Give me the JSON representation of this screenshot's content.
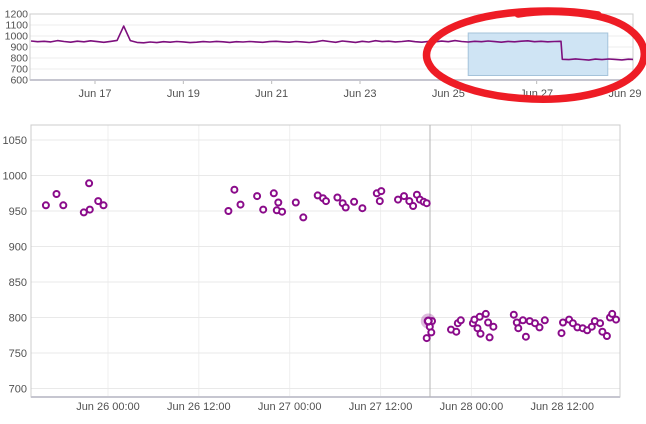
{
  "page": {
    "background": "#ffffff"
  },
  "chart_data": [
    {
      "id": "overview-line",
      "type": "line",
      "title": "",
      "xlabel": "",
      "ylabel": "",
      "legend": "none",
      "x_axis": {
        "tick_labels": [
          "Jun 17",
          "Jun 19",
          "Jun 21",
          "Jun 23",
          "Jun 25",
          "Jun 27",
          "Jun 29"
        ],
        "tick_days": [
          0,
          2,
          4,
          6,
          8,
          10,
          12
        ],
        "range_days": [
          -1.47,
          12.17
        ],
        "grid": false
      },
      "y_axis": {
        "ticks": [
          1200,
          1100,
          1000,
          900,
          800,
          700,
          600
        ],
        "range": [
          600,
          1200
        ],
        "grid": true
      },
      "series": [
        {
          "name": "metric",
          "color": "#7d0f7d",
          "x_step": 0.15,
          "segments": [
            {
              "x_start": -1.45,
              "values": [
                955,
                948,
                952,
                946,
                958,
                950,
                944,
                953,
                947,
                956,
                949,
                943,
                951,
                960,
                1090,
                958,
                942,
                938,
                945,
                940,
                948,
                944,
                950,
                946,
                940,
                944,
                949,
                945,
                951,
                947,
                942,
                948,
                945,
                950,
                946,
                943,
                949,
                952,
                947,
                944,
                950,
                946,
                941,
                947,
                958,
                950,
                943,
                955,
                948,
                942,
                952,
                945,
                957,
                949,
                953,
                946,
                950,
                956,
                948,
                944,
                951,
                947,
                954,
                948,
                958,
                950,
                945,
                952,
                948,
                955,
                949,
                944,
                951,
                947,
                953,
                956,
                948,
                952,
                947,
                950,
                952
              ]
            },
            {
              "x_start": 10.58,
              "values": [
                788,
                785,
                792,
                786,
                781,
                790,
                785,
                791,
                787,
                783,
                789,
                786
              ]
            }
          ]
        }
      ],
      "selection": {
        "from_day": 8.45,
        "to_day": 11.61,
        "value_top": 1027,
        "value_bottom": 645,
        "fill": "#cfe4f4",
        "border": "#a5c3da"
      },
      "annotation": {
        "kind": "hand-drawn-circle",
        "color": "#ee1c25"
      }
    },
    {
      "id": "detail-scatter",
      "type": "scatter",
      "title": "",
      "xlabel": "",
      "ylabel": "",
      "legend": "none",
      "x_axis": {
        "tick_labels": [
          "Jun 26 00:00",
          "Jun 26 12:00",
          "Jun 27 00:00",
          "Jun 27 12:00",
          "Jun 28 00:00",
          "Jun 28 12:00"
        ],
        "tick_hours": [
          0,
          12,
          24,
          36,
          48,
          60
        ],
        "range_hours": [
          -10.2,
          67.6
        ],
        "grid": true
      },
      "y_axis": {
        "ticks": [
          1050,
          1000,
          950,
          900,
          850,
          800,
          750,
          700
        ],
        "range": [
          688,
          1071
        ],
        "grid": true
      },
      "marker_color": "#8a0b8a",
      "crosshair_hour": 42.53,
      "hover_point": [
        42.3,
        795
      ],
      "points": [
        [
          -8.2,
          958
        ],
        [
          -6.8,
          974
        ],
        [
          -5.9,
          958
        ],
        [
          -3.2,
          948
        ],
        [
          -2.5,
          989
        ],
        [
          -2.4,
          952
        ],
        [
          -1.3,
          964
        ],
        [
          -0.6,
          958
        ],
        [
          15.9,
          950
        ],
        [
          16.7,
          980
        ],
        [
          17.5,
          959
        ],
        [
          19.7,
          971
        ],
        [
          20.5,
          952
        ],
        [
          21.9,
          975
        ],
        [
          22.3,
          951
        ],
        [
          22.5,
          962
        ],
        [
          23,
          949
        ],
        [
          24.8,
          962
        ],
        [
          25.8,
          941
        ],
        [
          27.7,
          972
        ],
        [
          28.4,
          968
        ],
        [
          28.8,
          964
        ],
        [
          30.3,
          969
        ],
        [
          31,
          961
        ],
        [
          31.4,
          955
        ],
        [
          32.5,
          963
        ],
        [
          33.6,
          954
        ],
        [
          35.5,
          975
        ],
        [
          35.9,
          964
        ],
        [
          36.1,
          978
        ],
        [
          38.3,
          966
        ],
        [
          39.1,
          971
        ],
        [
          39.8,
          964
        ],
        [
          40.3,
          957
        ],
        [
          40.8,
          973
        ],
        [
          41.2,
          966
        ],
        [
          41.7,
          963
        ],
        [
          42.1,
          961
        ],
        [
          42.1,
          771
        ],
        [
          42.3,
          795
        ],
        [
          42.5,
          787
        ],
        [
          42.7,
          779
        ],
        [
          42.8,
          795
        ],
        [
          45.3,
          783
        ],
        [
          46,
          780
        ],
        [
          46.2,
          792
        ],
        [
          46.6,
          796
        ],
        [
          48.2,
          792
        ],
        [
          48.4,
          797
        ],
        [
          48.8,
          785
        ],
        [
          49.1,
          801
        ],
        [
          49.2,
          777
        ],
        [
          49.9,
          805
        ],
        [
          50.2,
          793
        ],
        [
          50.4,
          772
        ],
        [
          50.9,
          787
        ],
        [
          53.6,
          804
        ],
        [
          54,
          793
        ],
        [
          54.2,
          785
        ],
        [
          54.8,
          796
        ],
        [
          55.2,
          773
        ],
        [
          55.7,
          795
        ],
        [
          56.4,
          792
        ],
        [
          57,
          786
        ],
        [
          57.7,
          796
        ],
        [
          59.9,
          778
        ],
        [
          60.1,
          793
        ],
        [
          60.9,
          797
        ],
        [
          61.4,
          792
        ],
        [
          62,
          786
        ],
        [
          62.7,
          785
        ],
        [
          63.3,
          782
        ],
        [
          63.9,
          787
        ],
        [
          64.3,
          795
        ],
        [
          65,
          792
        ],
        [
          65.3,
          780
        ],
        [
          65.9,
          774
        ],
        [
          66.3,
          800
        ],
        [
          66.6,
          805
        ],
        [
          67.1,
          797
        ]
      ]
    }
  ]
}
